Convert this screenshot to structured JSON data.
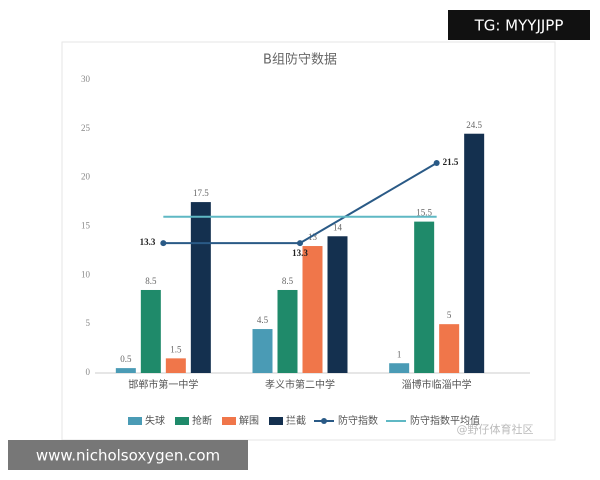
{
  "chart_data": {
    "type": "bar",
    "title": "B组防守数据",
    "categories": [
      "邯郸市第一中学",
      "孝义市第二中学",
      "淄博市临淄中学"
    ],
    "series": [
      {
        "name": "失球",
        "type": "bar",
        "color": "#4a9bb5",
        "values": [
          0.5,
          4.5,
          1
        ]
      },
      {
        "name": "抢断",
        "type": "bar",
        "color": "#1f8a6a",
        "values": [
          8.5,
          8.5,
          15.5
        ]
      },
      {
        "name": "解围",
        "type": "bar",
        "color": "#f0764a",
        "values": [
          1.5,
          13,
          5
        ]
      },
      {
        "name": "拦截",
        "type": "bar",
        "color": "#14304f",
        "values": [
          17.5,
          14,
          24.5
        ]
      },
      {
        "name": "防守指数",
        "type": "line",
        "color": "#2a5a86",
        "markers": true,
        "show_labels": true,
        "values": [
          13.3,
          13.3,
          21.5
        ]
      },
      {
        "name": "防守指数平均值",
        "type": "line",
        "color": "#5fb8c4",
        "markers": false,
        "show_labels": false,
        "values": [
          16,
          16,
          16
        ]
      }
    ],
    "ylim": [
      0,
      30
    ],
    "yticks": [
      0,
      5,
      10,
      15,
      20,
      25,
      30
    ],
    "grid": false,
    "legend": "bottom"
  },
  "overlays": {
    "top_right": "TG: MYYJJPP",
    "bottom_left": "www.nicholsoxygen.com",
    "watermark": "@野仔体育社区"
  }
}
